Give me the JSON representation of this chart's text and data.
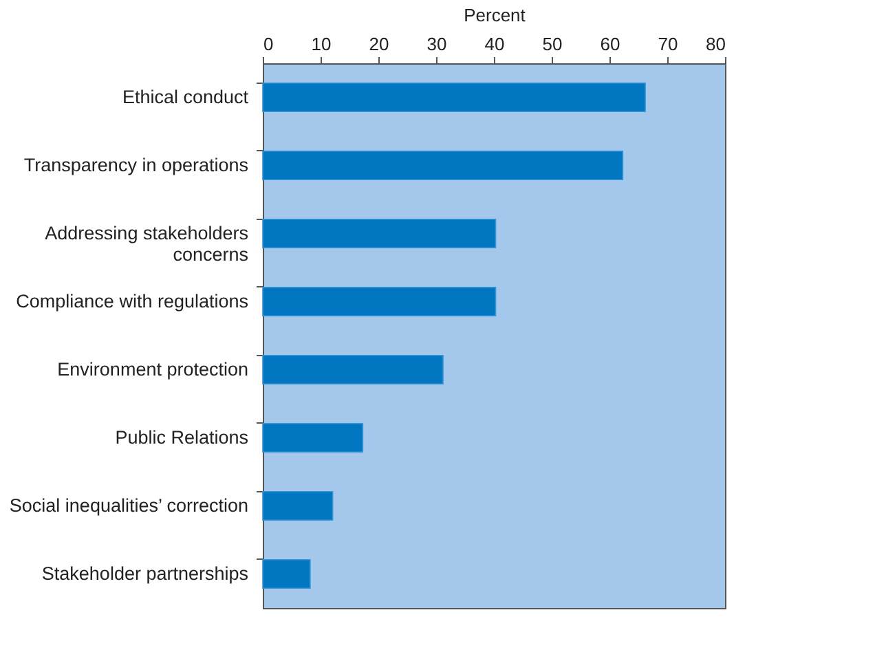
{
  "chart_data": {
    "type": "bar",
    "orientation": "horizontal",
    "xlabel": "Percent",
    "categories": [
      "Ethical conduct",
      "Transparency in operations",
      "Addressing stakeholders\nconcerns",
      "Compliance with regulations",
      "Environment protection",
      "Public Relations",
      "Social inequalities’ correction",
      "Stakeholder partnerships"
    ],
    "values": [
      66.2,
      62.3,
      40.3,
      40.3,
      31.2,
      17.3,
      12.1,
      8.2
    ],
    "color": "#0077c0",
    "xlim": [
      0,
      80
    ],
    "xticks": [
      0,
      10,
      20,
      30,
      40,
      50,
      60,
      70,
      80
    ],
    "grid": false
  }
}
